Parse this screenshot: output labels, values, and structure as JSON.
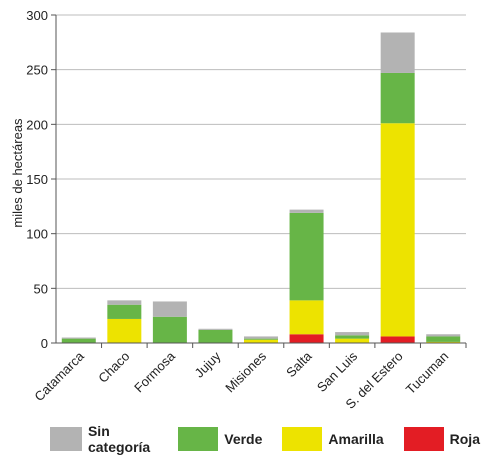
{
  "chart_data": {
    "type": "bar",
    "stacked": true,
    "categories": [
      "Catamarca",
      "Chaco",
      "Formosa",
      "Jujuy",
      "Misiones",
      "Salta",
      "San Luis",
      "S. del Estero",
      "Tucuman"
    ],
    "series": [
      {
        "name": "Roja",
        "color": "#e31d24",
        "values": [
          0,
          0,
          0,
          0,
          0,
          8,
          0,
          6,
          0
        ]
      },
      {
        "name": "Amarilla",
        "color": "#ede300",
        "values": [
          0,
          22,
          0,
          0,
          3,
          31,
          4,
          195,
          1
        ]
      },
      {
        "name": "Verde",
        "color": "#67b547",
        "values": [
          4,
          13,
          24,
          12,
          1,
          80,
          3,
          46,
          5
        ]
      },
      {
        "name": "Sin categoría",
        "color": "#b3b3b3",
        "values": [
          1,
          4,
          14,
          1,
          2,
          3,
          3,
          37,
          2
        ]
      }
    ],
    "legend_order": [
      "Sin categoría",
      "Verde",
      "Amarilla",
      "Roja"
    ],
    "ylabel": "miles de hectáreas",
    "xlabel": "",
    "ylim": [
      0,
      300
    ],
    "yticks": [
      0,
      50,
      100,
      150,
      200,
      250,
      300
    ],
    "grid": true,
    "legend_position": "bottom"
  }
}
